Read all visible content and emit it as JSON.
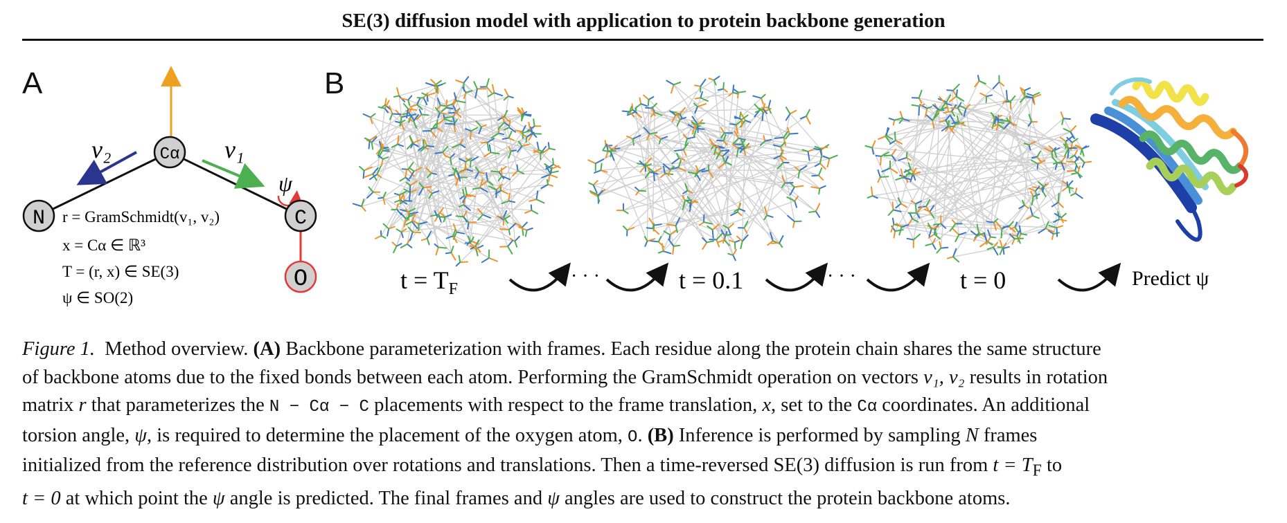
{
  "header": {
    "title": "SE(3) diffusion model with application to protein backbone generation"
  },
  "panel_a": {
    "letter": "A",
    "atoms": {
      "ca": "Cα",
      "n": "N",
      "c": "C",
      "o": "O"
    },
    "vector_labels": {
      "v1": "v₁",
      "v2": "v₂",
      "psi": "ψ"
    },
    "equations": [
      "r = GramSchmidt(v₁, v₂)",
      "x = Cα ∈ ℝ³",
      "T = (r, x) ∈ SE(3)",
      "ψ ∈ SO(2)"
    ],
    "colors": {
      "orange": "#f0a020",
      "blue": "#2b3590",
      "green": "#4caf50",
      "red": "#e53935",
      "atom_fill": "#d0d0d0"
    }
  },
  "panel_b": {
    "letter": "B",
    "step_labels": [
      "t = T",
      "F",
      "t = 0.1",
      "t = 0"
    ],
    "ellipsis": "· · ·",
    "predict_label": "Predict ψ",
    "frame_colors": {
      "axis1": "#f0912a",
      "axis2": "#3b78c8",
      "axis3": "#4caf50",
      "edge": "#cfcfcf"
    },
    "ribbon_colors": [
      "#1f3fa8",
      "#4a90d9",
      "#7fcde0",
      "#58b368",
      "#a6d05a",
      "#f2e24a",
      "#f5b03c",
      "#ee7a2f",
      "#d93a2b"
    ]
  },
  "caption": {
    "label": "Figure 1.",
    "lines": [
      [
        "Method overview. ",
        "(A)",
        " Backbone parameterization with frames. Each residue along the protein chain shares the same structure"
      ],
      [
        "of backbone atoms due to the fixed bonds between each atom. Performing the GramSchmidt operation on vectors ",
        "v₁, v₂",
        " results in rotation"
      ],
      [
        "matrix ",
        "r",
        " that parameterizes the ",
        "N − Cα − C",
        " placements with respect to the frame translation, ",
        "x",
        ", set to the ",
        "Cα",
        " coordinates. An additional"
      ],
      [
        "torsion angle, ",
        "ψ",
        ", is required to determine the placement of the oxygen atom, ",
        "O",
        ". ",
        "(B)",
        " Inference is performed by sampling ",
        "N",
        " frames"
      ],
      [
        "initialized from the reference distribution over rotations and translations. Then a time-reversed SE(3) diffusion is run from ",
        "t = T",
        "F",
        " to"
      ],
      [
        "t = 0",
        " at which point the ",
        "ψ",
        " angle is predicted. The final frames and ",
        "ψ",
        " angles are used to construct the protein backbone atoms."
      ]
    ]
  }
}
